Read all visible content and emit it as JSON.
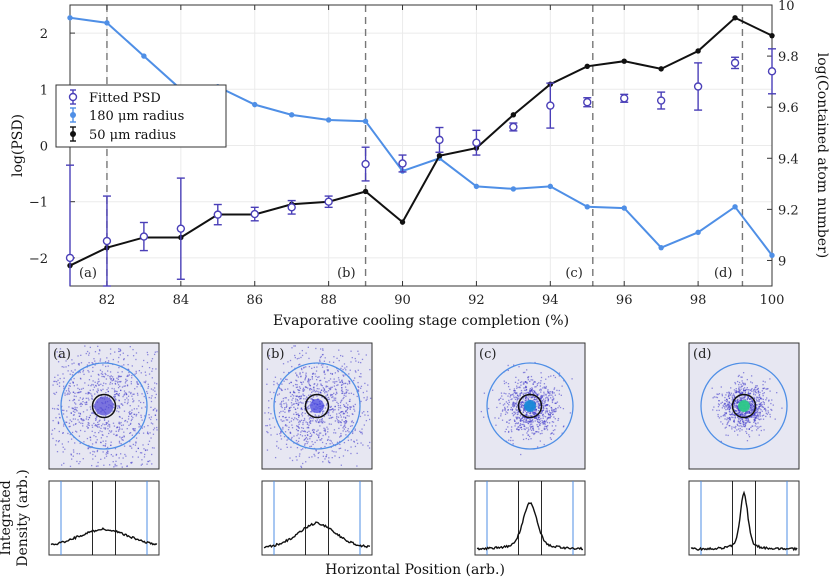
{
  "chart_data": {
    "type": "line",
    "x": [
      81,
      82,
      83,
      84,
      85,
      86,
      87,
      88,
      89,
      90,
      91,
      92,
      93,
      94,
      95,
      96,
      97,
      98,
      99,
      100
    ],
    "xlabel": "Evaporative cooling stage completion (%)",
    "ylabel_left": "log(PSD)",
    "ylabel_right": "log(Contained atom number)",
    "xlim": [
      81,
      100
    ],
    "ylim_left": [
      -2.5,
      2.5
    ],
    "ylim_right": [
      8.9,
      10
    ],
    "xticks": [
      82,
      84,
      86,
      88,
      90,
      92,
      94,
      96,
      98,
      100
    ],
    "yticks_left": [
      -2,
      -1,
      0,
      1,
      2
    ],
    "yticks_right": [
      9,
      9.2,
      9.4,
      9.6,
      9.8,
      10
    ],
    "grid": true,
    "legend_position": "upper-left",
    "series": [
      {
        "name": "Fitted PSD",
        "axis": "left",
        "color": "#4a3fb8",
        "marker": "open-circle",
        "values": [
          -2.0,
          -1.7,
          -1.62,
          -1.48,
          -1.23,
          -1.22,
          -1.1,
          -1.0,
          -0.33,
          -0.32,
          0.1,
          0.05,
          0.33,
          0.71,
          0.77,
          0.84,
          0.8,
          1.05,
          1.47,
          1.32
        ],
        "errors": [
          1.65,
          0.8,
          0.25,
          0.9,
          0.18,
          0.12,
          0.12,
          0.1,
          0.3,
          0.15,
          0.22,
          0.22,
          0.07,
          0.4,
          0.08,
          0.07,
          0.15,
          0.42,
          0.1,
          0.4
        ]
      },
      {
        "name": "180 μm radius",
        "axis": "right",
        "color": "#4f8fe6",
        "marker": "dot",
        "values": [
          9.95,
          9.93,
          9.8,
          9.67,
          9.68,
          9.61,
          9.57,
          9.55,
          9.545,
          9.35,
          9.4,
          9.29,
          9.28,
          9.29,
          9.21,
          9.205,
          9.05,
          9.11,
          9.21,
          9.02
        ]
      },
      {
        "name": "50 μm radius",
        "axis": "right",
        "color": "#111111",
        "marker": "dot",
        "values": [
          8.98,
          9.05,
          9.09,
          9.09,
          9.18,
          9.18,
          9.22,
          9.23,
          9.27,
          9.15,
          9.41,
          9.44,
          9.57,
          9.69,
          9.76,
          9.78,
          9.75,
          9.82,
          9.95,
          9.88
        ]
      }
    ],
    "stage_markers": [
      {
        "label": "(a)",
        "x": 82
      },
      {
        "label": "(b)",
        "x": 89
      },
      {
        "label": "(c)",
        "x": 95.15
      },
      {
        "label": "(d)",
        "x": 99.2
      }
    ],
    "legend": [
      "Fitted PSD",
      "180 μm radius",
      "50 μm radius"
    ]
  },
  "insets": {
    "panels": [
      {
        "label": "(a)",
        "cloud_core": "#4b42d6",
        "cloud_spread": 0.95,
        "profile_peak": 0.32,
        "profile_width": 0.5
      },
      {
        "label": "(b)",
        "cloud_core": "#3f3fe0",
        "cloud_spread": 0.7,
        "profile_peak": 0.42,
        "profile_width": 0.35
      },
      {
        "label": "(c)",
        "cloud_core": "#1a88d8",
        "cloud_spread": 0.35,
        "profile_peak": 0.75,
        "profile_width": 0.13
      },
      {
        "label": "(d)",
        "cloud_core": "#2ec88a",
        "cloud_spread": 0.28,
        "profile_peak": 0.92,
        "profile_width": 0.07
      }
    ],
    "ylabel_line1": "Integrated",
    "ylabel_line2": "Density (arb.)",
    "xlabel": "Horizontal Position (arb.)"
  }
}
